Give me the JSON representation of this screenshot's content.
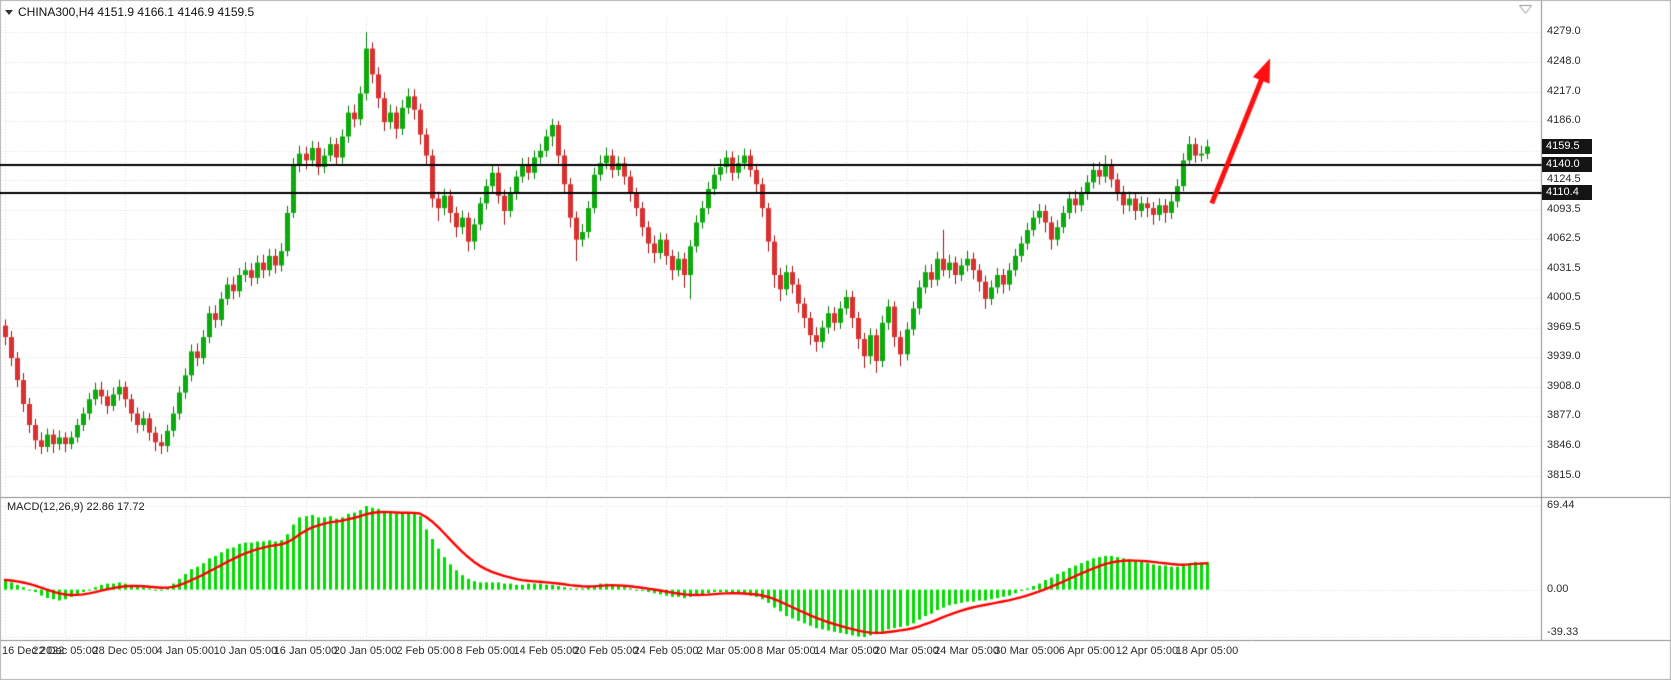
{
  "header": {
    "symbol_info": "CHINA300,H4  4151.9 4166.1 4146.9 4159.5"
  },
  "chart_data": {
    "type": "candlestick",
    "symbol": "CHINA300",
    "timeframe": "H4",
    "current_ohlc": {
      "open": 4151.9,
      "high": 4166.1,
      "low": 4146.9,
      "close": 4159.5
    },
    "bars_per_tick": 10,
    "x_tick_labels": [
      "16 Dec 2022",
      "22 Dec 05:00",
      "28 Dec 05:00",
      "4 Jan 05:00",
      "10 Jan 05:00",
      "16 Jan 05:00",
      "20 Jan 05:00",
      "2 Feb 05:00",
      "8 Feb 05:00",
      "14 Feb 05:00",
      "20 Feb 05:00",
      "24 Feb 05:00",
      "2 Mar 05:00",
      "8 Mar 05:00",
      "14 Mar 05:00",
      "20 Mar 05:00",
      "24 Mar 05:00",
      "30 Mar 05:00",
      "6 Apr 05:00",
      "12 Apr 05:00",
      "18 Apr 05:00"
    ],
    "price_axis": {
      "view_max": 4294,
      "view_min": 3800,
      "labels": [
        "4279.0",
        "4248.0",
        "4217.0",
        "4186.0",
        "4124.5",
        "4093.5",
        "4062.5",
        "4031.5",
        "4000.5",
        "3969.5",
        "3939.0",
        "3908.0",
        "3877.0",
        "3846.0",
        "3815.0"
      ],
      "grid_values": [
        4279,
        4248,
        4217,
        4186,
        4155,
        4124.5,
        4093.5,
        4062.5,
        4031.5,
        4000.5,
        3969.5,
        3939,
        3908,
        3877,
        3846,
        3815
      ],
      "badges": [
        {
          "text": "4159.5",
          "value": 4159.5,
          "kind": "current-price"
        },
        {
          "text": "4140.0",
          "value": 4140.0,
          "kind": "resistance-line"
        },
        {
          "text": "4110.4",
          "value": 4110.4,
          "kind": "support-line"
        }
      ]
    },
    "hlines": [
      {
        "value": 4140.0
      },
      {
        "value": 4110.4
      }
    ],
    "annotation_arrow": {
      "from_bar": 200.8,
      "from_price": 4100,
      "to_bar": 210.5,
      "to_price": 4252
    },
    "candles": [
      [
        3972,
        3978,
        3952,
        3960
      ],
      [
        3960,
        3966,
        3930,
        3938
      ],
      [
        3938,
        3944,
        3908,
        3915
      ],
      [
        3915,
        3922,
        3882,
        3890
      ],
      [
        3890,
        3896,
        3860,
        3868
      ],
      [
        3868,
        3874,
        3843,
        3852
      ],
      [
        3852,
        3860,
        3838,
        3845
      ],
      [
        3845,
        3864,
        3840,
        3858
      ],
      [
        3858,
        3863,
        3839,
        3848
      ],
      [
        3848,
        3862,
        3842,
        3855
      ],
      [
        3855,
        3860,
        3840,
        3848
      ],
      [
        3848,
        3861,
        3843,
        3855
      ],
      [
        3855,
        3874,
        3850,
        3868
      ],
      [
        3868,
        3886,
        3862,
        3880
      ],
      [
        3880,
        3901,
        3874,
        3895
      ],
      [
        3895,
        3912,
        3889,
        3905
      ],
      [
        3905,
        3913,
        3890,
        3898
      ],
      [
        3898,
        3904,
        3880,
        3888
      ],
      [
        3888,
        3907,
        3883,
        3900
      ],
      [
        3900,
        3915,
        3894,
        3908
      ],
      [
        3908,
        3913,
        3887,
        3895
      ],
      [
        3895,
        3900,
        3872,
        3880
      ],
      [
        3880,
        3886,
        3860,
        3868
      ],
      [
        3868,
        3882,
        3862,
        3875
      ],
      [
        3875,
        3880,
        3852,
        3860
      ],
      [
        3860,
        3866,
        3841,
        3850
      ],
      [
        3850,
        3858,
        3838,
        3846
      ],
      [
        3846,
        3868,
        3840,
        3862
      ],
      [
        3862,
        3887,
        3856,
        3880
      ],
      [
        3880,
        3908,
        3874,
        3902
      ],
      [
        3902,
        3927,
        3896,
        3920
      ],
      [
        3920,
        3952,
        3914,
        3945
      ],
      [
        3945,
        3953,
        3930,
        3938
      ],
      [
        3938,
        3967,
        3932,
        3960
      ],
      [
        3960,
        3992,
        3954,
        3985
      ],
      [
        3985,
        3993,
        3970,
        3978
      ],
      [
        3978,
        4007,
        3972,
        4000
      ],
      [
        4000,
        4022,
        3994,
        4015
      ],
      [
        4015,
        4023,
        4000,
        4008
      ],
      [
        4008,
        4032,
        4002,
        4025
      ],
      [
        4025,
        4038,
        4018,
        4030
      ],
      [
        4030,
        4037,
        4014,
        4022
      ],
      [
        4022,
        4045,
        4016,
        4038
      ],
      [
        4038,
        4046,
        4022,
        4030
      ],
      [
        4030,
        4052,
        4024,
        4045
      ],
      [
        4045,
        4052,
        4027,
        4035
      ],
      [
        4035,
        4058,
        4029,
        4050
      ],
      [
        4050,
        4097,
        4045,
        4090
      ],
      [
        4090,
        4147,
        4085,
        4140
      ],
      [
        4140,
        4160,
        4133,
        4152
      ],
      [
        4152,
        4159,
        4136,
        4145
      ],
      [
        4145,
        4165,
        4139,
        4158
      ],
      [
        4158,
        4164,
        4130,
        4138
      ],
      [
        4138,
        4157,
        4132,
        4150
      ],
      [
        4150,
        4169,
        4144,
        4162
      ],
      [
        4162,
        4168,
        4140,
        4148
      ],
      [
        4148,
        4177,
        4142,
        4170
      ],
      [
        4170,
        4202,
        4164,
        4195
      ],
      [
        4195,
        4203,
        4180,
        4188
      ],
      [
        4188,
        4222,
        4182,
        4215
      ],
      [
        4215,
        4279,
        4208,
        4262
      ],
      [
        4262,
        4268,
        4226,
        4235
      ],
      [
        4235,
        4242,
        4200,
        4210
      ],
      [
        4210,
        4216,
        4176,
        4185
      ],
      [
        4185,
        4203,
        4178,
        4195
      ],
      [
        4195,
        4201,
        4168,
        4178
      ],
      [
        4178,
        4208,
        4172,
        4200
      ],
      [
        4200,
        4220,
        4194,
        4212
      ],
      [
        4212,
        4219,
        4188,
        4198
      ],
      [
        4198,
        4204,
        4162,
        4172
      ],
      [
        4172,
        4178,
        4140,
        4150
      ],
      [
        4150,
        4156,
        4096,
        4105
      ],
      [
        4105,
        4112,
        4082,
        4095
      ],
      [
        4095,
        4115,
        4088,
        4108
      ],
      [
        4108,
        4114,
        4080,
        4090
      ],
      [
        4090,
        4096,
        4065,
        4075
      ],
      [
        4075,
        4092,
        4068,
        4085
      ],
      [
        4085,
        4090,
        4050,
        4060
      ],
      [
        4060,
        4084,
        4052,
        4078
      ],
      [
        4078,
        4106,
        4072,
        4100
      ],
      [
        4100,
        4125,
        4094,
        4118
      ],
      [
        4118,
        4139,
        4112,
        4132
      ],
      [
        4132,
        4138,
        4100,
        4108
      ],
      [
        4108,
        4114,
        4078,
        4092
      ],
      [
        4092,
        4117,
        4086,
        4110
      ],
      [
        4110,
        4134,
        4104,
        4128
      ],
      [
        4128,
        4147,
        4122,
        4140
      ],
      [
        4140,
        4148,
        4125,
        4132
      ],
      [
        4132,
        4155,
        4126,
        4148
      ],
      [
        4148,
        4162,
        4142,
        4155
      ],
      [
        4155,
        4177,
        4149,
        4170
      ],
      [
        4170,
        4188,
        4160,
        4182
      ],
      [
        4182,
        4186,
        4142,
        4150
      ],
      [
        4150,
        4156,
        4112,
        4120
      ],
      [
        4120,
        4126,
        4075,
        4085
      ],
      [
        4085,
        4091,
        4040,
        4062
      ],
      [
        4062,
        4078,
        4055,
        4070
      ],
      [
        4070,
        4102,
        4064,
        4095
      ],
      [
        4095,
        4137,
        4090,
        4130
      ],
      [
        4130,
        4150,
        4124,
        4142
      ],
      [
        4142,
        4158,
        4136,
        4150
      ],
      [
        4150,
        4156,
        4127,
        4135
      ],
      [
        4135,
        4149,
        4129,
        4142
      ],
      [
        4142,
        4148,
        4120,
        4128
      ],
      [
        4128,
        4134,
        4102,
        4110
      ],
      [
        4110,
        4116,
        4087,
        4095
      ],
      [
        4095,
        4101,
        4066,
        4075
      ],
      [
        4075,
        4081,
        4048,
        4058
      ],
      [
        4058,
        4066,
        4038,
        4048
      ],
      [
        4048,
        4069,
        4042,
        4062
      ],
      [
        4062,
        4068,
        4036,
        4045
      ],
      [
        4045,
        4051,
        4020,
        4030
      ],
      [
        4030,
        4049,
        4024,
        4042
      ],
      [
        4042,
        4048,
        4012,
        4025
      ],
      [
        4025,
        4061,
        4000,
        4055
      ],
      [
        4055,
        4087,
        4049,
        4080
      ],
      [
        4080,
        4102,
        4074,
        4095
      ],
      [
        4095,
        4122,
        4089,
        4115
      ],
      [
        4115,
        4137,
        4109,
        4130
      ],
      [
        4130,
        4146,
        4124,
        4138
      ],
      [
        4138,
        4155,
        4132,
        4148
      ],
      [
        4148,
        4154,
        4124,
        4132
      ],
      [
        4132,
        4150,
        4126,
        4142
      ],
      [
        4142,
        4157,
        4136,
        4150
      ],
      [
        4150,
        4156,
        4128,
        4135
      ],
      [
        4135,
        4141,
        4112,
        4120
      ],
      [
        4120,
        4126,
        4086,
        4095
      ],
      [
        4095,
        4100,
        4050,
        4060
      ],
      [
        4060,
        4066,
        4012,
        4025
      ],
      [
        4025,
        4032,
        3998,
        4010
      ],
      [
        4010,
        4035,
        4004,
        4028
      ],
      [
        4028,
        4034,
        4006,
        4015
      ],
      [
        4015,
        4021,
        3986,
        3995
      ],
      [
        3995,
        4001,
        3970,
        3980
      ],
      [
        3980,
        3986,
        3952,
        3962
      ],
      [
        3962,
        3970,
        3945,
        3955
      ],
      [
        3955,
        3977,
        3949,
        3970
      ],
      [
        3970,
        3992,
        3964,
        3985
      ],
      [
        3985,
        3991,
        3967,
        3975
      ],
      [
        3975,
        3997,
        3969,
        3990
      ],
      [
        3990,
        4009,
        3984,
        4002
      ],
      [
        4002,
        4008,
        3970,
        3980
      ],
      [
        3980,
        3986,
        3948,
        3958
      ],
      [
        3958,
        3964,
        3928,
        3940
      ],
      [
        3940,
        3969,
        3932,
        3962
      ],
      [
        3962,
        3968,
        3923,
        3935
      ],
      [
        3935,
        3982,
        3929,
        3975
      ],
      [
        3975,
        3999,
        3968,
        3992
      ],
      [
        3992,
        3997,
        3950,
        3960
      ],
      [
        3960,
        3966,
        3930,
        3942
      ],
      [
        3942,
        3975,
        3936,
        3968
      ],
      [
        3968,
        3997,
        3962,
        3990
      ],
      [
        3990,
        4019,
        3984,
        4012
      ],
      [
        4012,
        4035,
        4006,
        4028
      ],
      [
        4028,
        4036,
        4012,
        4020
      ],
      [
        4020,
        4049,
        4014,
        4042
      ],
      [
        4042,
        4072,
        4024,
        4030
      ],
      [
        4030,
        4046,
        4022,
        4038
      ],
      [
        4038,
        4044,
        4016,
        4025
      ],
      [
        4025,
        4042,
        4019,
        4035
      ],
      [
        4035,
        4050,
        4029,
        4042
      ],
      [
        4042,
        4048,
        4021,
        4030
      ],
      [
        4030,
        4036,
        4008,
        4018
      ],
      [
        4018,
        4024,
        3990,
        4000
      ],
      [
        4000,
        4019,
        3994,
        4012
      ],
      [
        4012,
        4032,
        4006,
        4025
      ],
      [
        4025,
        4031,
        4006,
        4015
      ],
      [
        4015,
        4037,
        4009,
        4030
      ],
      [
        4030,
        4052,
        4024,
        4045
      ],
      [
        4045,
        4065,
        4039,
        4058
      ],
      [
        4058,
        4079,
        4052,
        4072
      ],
      [
        4072,
        4092,
        4066,
        4085
      ],
      [
        4085,
        4099,
        4079,
        4092
      ],
      [
        4092,
        4098,
        4070,
        4080
      ],
      [
        4080,
        4086,
        4052,
        4062
      ],
      [
        4062,
        4082,
        4056,
        4075
      ],
      [
        4075,
        4097,
        4069,
        4090
      ],
      [
        4090,
        4112,
        4084,
        4105
      ],
      [
        4105,
        4113,
        4090,
        4098
      ],
      [
        4098,
        4117,
        4092,
        4110
      ],
      [
        4110,
        4129,
        4104,
        4122
      ],
      [
        4122,
        4142,
        4116,
        4135
      ],
      [
        4135,
        4143,
        4120,
        4128
      ],
      [
        4128,
        4150,
        4122,
        4140
      ],
      [
        4140,
        4146,
        4117,
        4125
      ],
      [
        4125,
        4131,
        4103,
        4112
      ],
      [
        4112,
        4118,
        4089,
        4098
      ],
      [
        4098,
        4112,
        4092,
        4105
      ],
      [
        4105,
        4111,
        4083,
        4092
      ],
      [
        4092,
        4107,
        4086,
        4100
      ],
      [
        4100,
        4106,
        4086,
        4095
      ],
      [
        4095,
        4101,
        4078,
        4088
      ],
      [
        4088,
        4105,
        4082,
        4098
      ],
      [
        4098,
        4104,
        4080,
        4090
      ],
      [
        4090,
        4109,
        4084,
        4102
      ],
      [
        4102,
        4125,
        4096,
        4118
      ],
      [
        4118,
        4152,
        4113,
        4145
      ],
      [
        4145,
        4170,
        4140,
        4162
      ],
      [
        4162,
        4168,
        4143,
        4150
      ],
      [
        4150,
        4160,
        4144,
        4152
      ],
      [
        4151.9,
        4166.1,
        4146.9,
        4159.5
      ]
    ],
    "macd": {
      "label": "MACD(12,26,9) 22.86 17.72",
      "params": "12,26,9",
      "main_value": 22.86,
      "signal_value": 17.72,
      "signal_period": 9,
      "view_max": 69.44,
      "view_min": -39.33,
      "axis_labels": [
        {
          "text": "69.44",
          "value": 69.44
        },
        {
          "text": "0.00",
          "value": 0
        },
        {
          "text": "-39.33",
          "value": -39.33
        }
      ],
      "histogram": [
        8,
        6,
        4,
        2,
        0,
        -2,
        -5,
        -7,
        -8,
        -9,
        -8,
        -6,
        -4,
        -2,
        0,
        2,
        4,
        5,
        5,
        6,
        5,
        4,
        3,
        2,
        1,
        0,
        0,
        2,
        5,
        9,
        13,
        17,
        19,
        22,
        26,
        28,
        31,
        34,
        35,
        38,
        39,
        39,
        40,
        40,
        41,
        40,
        41,
        46,
        54,
        60,
        61,
        62,
        60,
        60,
        61,
        59,
        60,
        63,
        64,
        66,
        69.44,
        68,
        67,
        65,
        64,
        63,
        63,
        64,
        63,
        61,
        50,
        42,
        34,
        27,
        21,
        16,
        12,
        9,
        7,
        6,
        6,
        6,
        6,
        5,
        5,
        4,
        4,
        5,
        5,
        5,
        4,
        4,
        3,
        2,
        1,
        1,
        1,
        2,
        3,
        5,
        5,
        4,
        3,
        2,
        1,
        0,
        -1,
        -2,
        -3,
        -4,
        -5,
        -6,
        -6,
        -7,
        -6,
        -5,
        -4,
        -3,
        -2,
        -2,
        -2,
        -3,
        -3,
        -4,
        -5,
        -6,
        -8,
        -11,
        -15,
        -18,
        -22,
        -24,
        -26,
        -28,
        -30,
        -32,
        -33,
        -34,
        -35,
        -36,
        -37,
        -38,
        -39,
        -39.33,
        -38,
        -37,
        -35,
        -33,
        -32,
        -31,
        -30,
        -28,
        -25,
        -22,
        -20,
        -17,
        -15,
        -13,
        -12,
        -11,
        -10,
        -10,
        -9,
        -9,
        -8,
        -7,
        -6,
        -5,
        -3,
        -1,
        1,
        3,
        5,
        8,
        10,
        13,
        15,
        18,
        20,
        22,
        24,
        26,
        27,
        28,
        28,
        27,
        26,
        25,
        24,
        23,
        22,
        21,
        20,
        20,
        19,
        19,
        20,
        22,
        23,
        22.5,
        22.86
      ]
    },
    "colors": {
      "bull": "#0caa0c",
      "bull_outline": "#067a06",
      "bear": "#d93030",
      "bear_outline": "#a31515",
      "macd_bar": "#00dc00",
      "signal_line": "#ff0000",
      "hline": "#000000",
      "arrow": "#ff1010",
      "badge_bg": "#141414",
      "badge_text": "#ffffff",
      "grid": "#dcdcdc",
      "separator": "#8c8c8c",
      "axis_text": "#2b2b2b",
      "border": "#b4b4b4"
    }
  }
}
